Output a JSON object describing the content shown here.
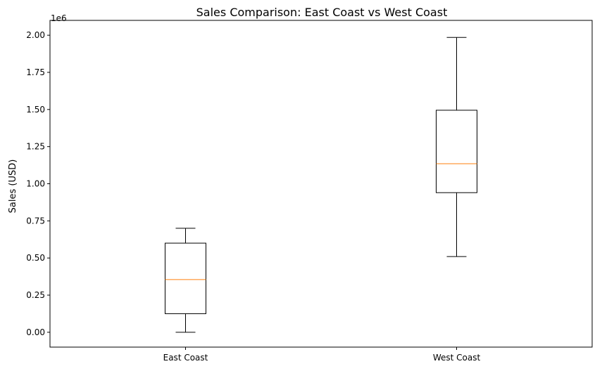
{
  "chart_data": {
    "type": "box",
    "title": "Sales Comparison: East Coast vs West Coast",
    "xlabel": "",
    "ylabel": "Sales (USD)",
    "offset_label": "1e6",
    "y_scale_factor": 1000000,
    "categories": [
      "East Coast",
      "West Coast"
    ],
    "ylim": [
      -0.1,
      2.1
    ],
    "yticks": [
      0.0,
      0.25,
      0.5,
      0.75,
      1.0,
      1.25,
      1.5,
      1.75,
      2.0
    ],
    "ytick_labels": [
      "0.00",
      "0.25",
      "0.50",
      "0.75",
      "1.00",
      "1.25",
      "1.50",
      "1.75",
      "2.00"
    ],
    "boxes": [
      {
        "category": "East Coast",
        "whisker_low": 0.0,
        "q1": 0.125,
        "median": 0.355,
        "q3": 0.6,
        "whisker_high": 0.7
      },
      {
        "category": "West Coast",
        "whisker_low": 0.51,
        "q1": 0.94,
        "median": 1.135,
        "q3": 1.495,
        "whisker_high": 1.985
      }
    ],
    "colors": {
      "box": "#000000",
      "median": "#ff7f0e"
    },
    "grid": false,
    "legend": "none"
  }
}
